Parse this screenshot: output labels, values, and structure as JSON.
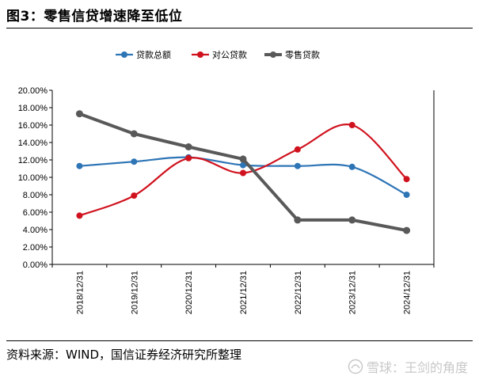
{
  "header": {
    "title": "图3：零售信贷增速降至低位"
  },
  "footer": {
    "source": "资料来源：WIND，国信证券经济研究所整理"
  },
  "watermark": {
    "text": "雪球：王剑的角度",
    "icon": "snowball-logo-icon"
  },
  "colors": {
    "series": [
      "#2e75b6",
      "#d0121e",
      "#595959"
    ]
  },
  "chart_data": {
    "type": "line",
    "title": "",
    "xlabel": "",
    "ylabel": "",
    "x": [
      "2018/12/31",
      "2019/12/31",
      "2020/12/31",
      "2021/12/31",
      "2022/12/31",
      "2023/12/31",
      "2024/12/31"
    ],
    "ylim": [
      0,
      20
    ],
    "yticks": [
      "0.00%",
      "2.00%",
      "4.00%",
      "6.00%",
      "8.00%",
      "10.00%",
      "12.00%",
      "14.00%",
      "16.00%",
      "18.00%",
      "20.00%"
    ],
    "legend": "top",
    "grid": false,
    "series": [
      {
        "name": "贷款总额",
        "values": [
          11.3,
          11.8,
          12.3,
          11.4,
          11.3,
          11.2,
          8.0
        ],
        "smooth": true
      },
      {
        "name": "对公贷款",
        "values": [
          5.6,
          7.9,
          12.2,
          10.5,
          13.2,
          16.0,
          9.8
        ],
        "smooth": true
      },
      {
        "name": "零售贷款",
        "values": [
          17.3,
          15.0,
          13.5,
          12.1,
          5.1,
          5.1,
          3.9
        ],
        "smooth": false
      }
    ]
  }
}
